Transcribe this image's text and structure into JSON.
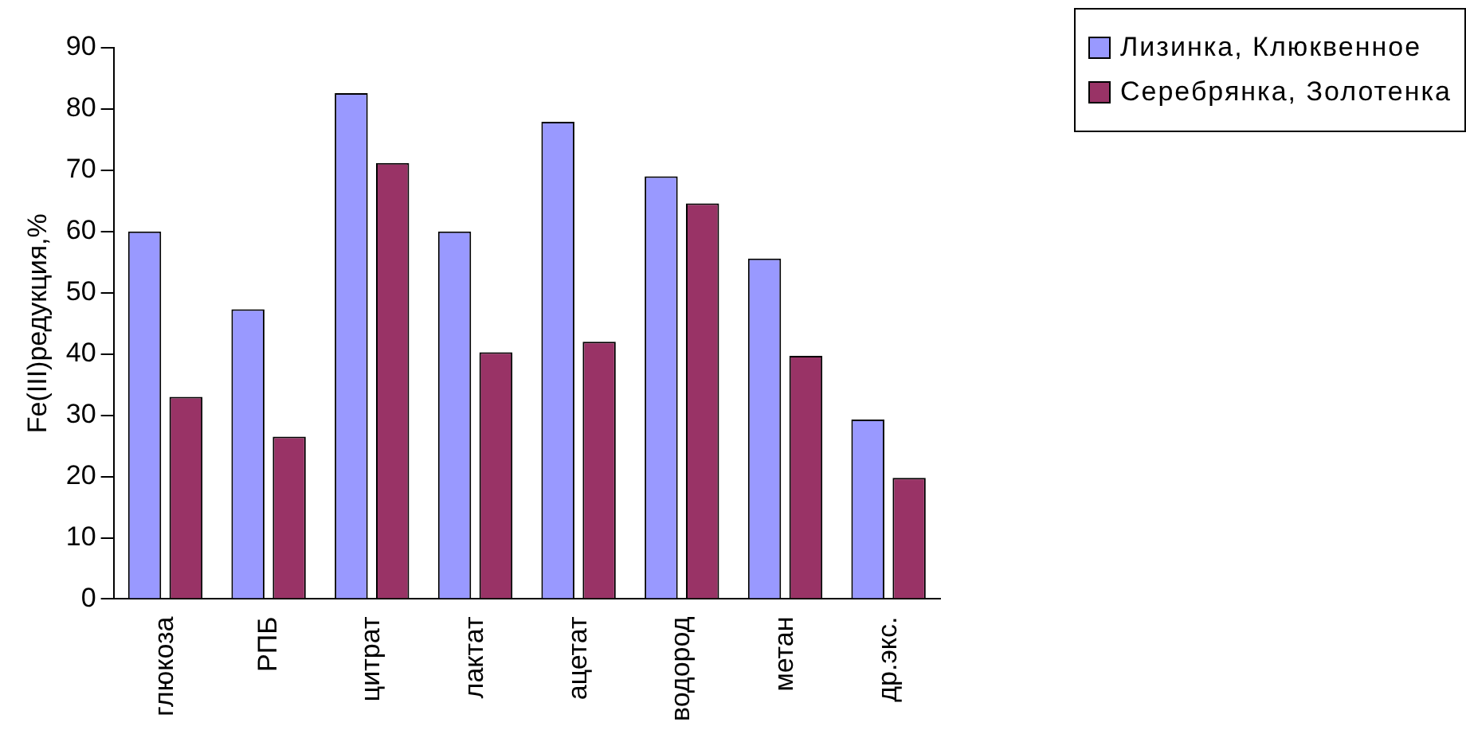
{
  "chart_data": {
    "type": "bar",
    "ylabel": "Fe(III)редукция,%",
    "categories": [
      "глюкоза",
      "РПБ",
      "цитрат",
      "лактат",
      "ацетат",
      "водород",
      "метан",
      "др.экс."
    ],
    "series": [
      {
        "name": "Лизинка, Клюквенное",
        "color": "#9999ff",
        "values": [
          60,
          47.3,
          82.6,
          60,
          77.9,
          69,
          55.6,
          29.3
        ]
      },
      {
        "name": "Серебрянка, Золотенка",
        "color": "#993366",
        "values": [
          33,
          26.5,
          71.2,
          40.3,
          42,
          64.6,
          39.7,
          19.8
        ]
      }
    ],
    "ylim": [
      0,
      90
    ],
    "yticks": [
      0,
      10,
      20,
      30,
      40,
      50,
      60,
      70,
      80,
      90
    ],
    "grid": false,
    "legend": "top right"
  }
}
